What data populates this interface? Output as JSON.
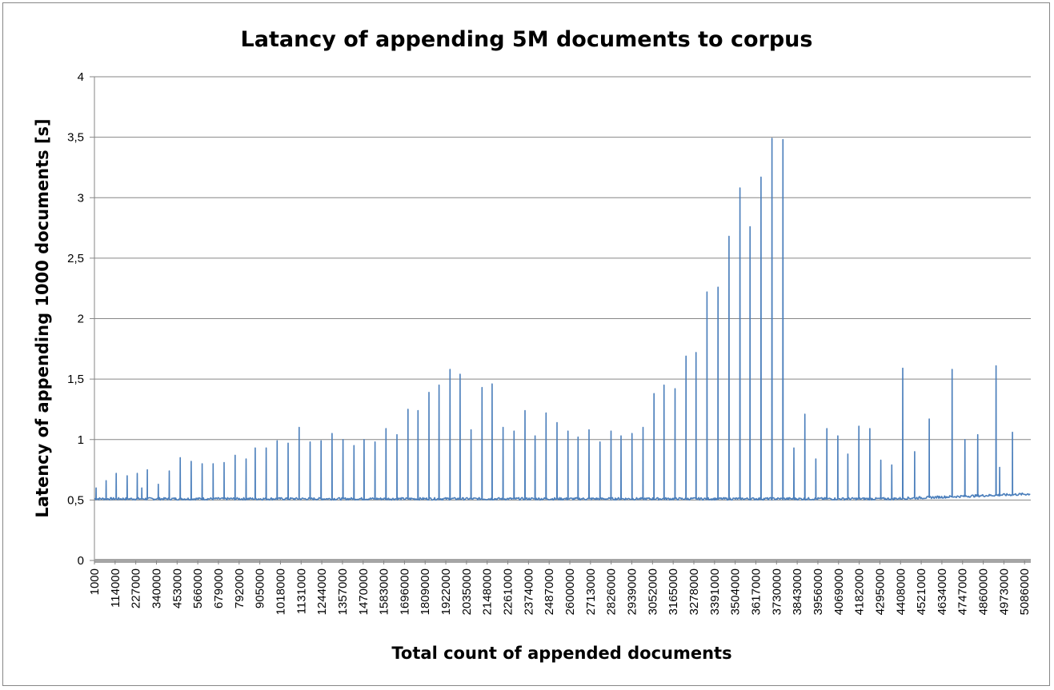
{
  "chart_data": {
    "type": "line",
    "title": "Latancy of appending 5M documents to corpus",
    "xlabel": "Total count of appended documents",
    "ylabel": "Latency of appending 1000 documents  [s]",
    "ylim": [
      0,
      4
    ],
    "xlim": [
      1000,
      5120000
    ],
    "y_ticks": [
      "0",
      "0,5",
      "1",
      "1,5",
      "2",
      "2,5",
      "3",
      "3,5",
      "4"
    ],
    "x_ticks": [
      1000,
      114000,
      227000,
      340000,
      453000,
      566000,
      679000,
      792000,
      905000,
      1018000,
      1131000,
      1244000,
      1357000,
      1470000,
      1583000,
      1696000,
      1809000,
      1922000,
      2035000,
      2148000,
      2261000,
      2374000,
      2487000,
      2600000,
      2713000,
      2826000,
      2939000,
      3052000,
      3165000,
      3278000,
      3391000,
      3504000,
      3617000,
      3730000,
      3843000,
      3956000,
      4069000,
      4182000,
      4295000,
      4408000,
      4521000,
      4634000,
      4747000,
      4860000,
      4973000,
      5086000
    ],
    "grid": true,
    "legend": "none",
    "series": [
      {
        "color": "#4a7ebb",
        "baseline": 0.51,
        "baseline_end": 0.55,
        "spikes": [
          [
            10000,
            0.6
          ],
          [
            65000,
            0.66
          ],
          [
            120000,
            0.72
          ],
          [
            180000,
            0.7
          ],
          [
            235000,
            0.72
          ],
          [
            260000,
            0.6
          ],
          [
            290000,
            0.75
          ],
          [
            350000,
            0.63
          ],
          [
            410000,
            0.74
          ],
          [
            470000,
            0.85
          ],
          [
            530000,
            0.82
          ],
          [
            590000,
            0.8
          ],
          [
            650000,
            0.8
          ],
          [
            710000,
            0.81
          ],
          [
            770000,
            0.87
          ],
          [
            830000,
            0.84
          ],
          [
            880000,
            0.93
          ],
          [
            940000,
            0.93
          ],
          [
            1000000,
            0.99
          ],
          [
            1060000,
            0.97
          ],
          [
            1120000,
            1.1
          ],
          [
            1180000,
            0.98
          ],
          [
            1240000,
            0.99
          ],
          [
            1300000,
            1.05
          ],
          [
            1360000,
            1.0
          ],
          [
            1420000,
            0.95
          ],
          [
            1475000,
            1.0
          ],
          [
            1535000,
            0.98
          ],
          [
            1595000,
            1.09
          ],
          [
            1655000,
            1.04
          ],
          [
            1715000,
            1.25
          ],
          [
            1770000,
            1.24
          ],
          [
            1830000,
            1.39
          ],
          [
            1885000,
            1.45
          ],
          [
            1945000,
            1.58
          ],
          [
            2000000,
            1.54
          ],
          [
            2060000,
            1.08
          ],
          [
            2120000,
            1.43
          ],
          [
            2175000,
            1.46
          ],
          [
            2235000,
            1.1
          ],
          [
            2295000,
            1.07
          ],
          [
            2355000,
            1.24
          ],
          [
            2410000,
            1.03
          ],
          [
            2470000,
            1.22
          ],
          [
            2530000,
            1.14
          ],
          [
            2590000,
            1.07
          ],
          [
            2645000,
            1.02
          ],
          [
            2705000,
            1.08
          ],
          [
            2765000,
            0.98
          ],
          [
            2825000,
            1.07
          ],
          [
            2880000,
            1.03
          ],
          [
            2940000,
            1.05
          ],
          [
            3000000,
            1.1
          ],
          [
            3060000,
            1.38
          ],
          [
            3115000,
            1.45
          ],
          [
            3175000,
            1.42
          ],
          [
            3235000,
            1.69
          ],
          [
            3290000,
            1.72
          ],
          [
            3350000,
            2.22
          ],
          [
            3410000,
            2.26
          ],
          [
            3470000,
            2.68
          ],
          [
            3530000,
            3.08
          ],
          [
            3585000,
            2.76
          ],
          [
            3645000,
            3.17
          ],
          [
            3705000,
            3.49
          ],
          [
            3765000,
            3.48
          ],
          [
            3825000,
            0.93
          ],
          [
            3885000,
            1.21
          ],
          [
            3945000,
            0.84
          ],
          [
            4005000,
            1.09
          ],
          [
            4065000,
            1.03
          ],
          [
            4120000,
            0.88
          ],
          [
            4180000,
            1.11
          ],
          [
            4240000,
            1.09
          ],
          [
            4300000,
            0.83
          ],
          [
            4360000,
            0.79
          ],
          [
            4420000,
            1.59
          ],
          [
            4485000,
            0.9
          ],
          [
            4565000,
            1.17
          ],
          [
            4690000,
            1.58
          ],
          [
            4760000,
            1.0
          ],
          [
            4830000,
            1.04
          ],
          [
            4930000,
            1.61
          ],
          [
            4950000,
            0.77
          ],
          [
            5020000,
            1.06
          ]
        ]
      }
    ]
  }
}
